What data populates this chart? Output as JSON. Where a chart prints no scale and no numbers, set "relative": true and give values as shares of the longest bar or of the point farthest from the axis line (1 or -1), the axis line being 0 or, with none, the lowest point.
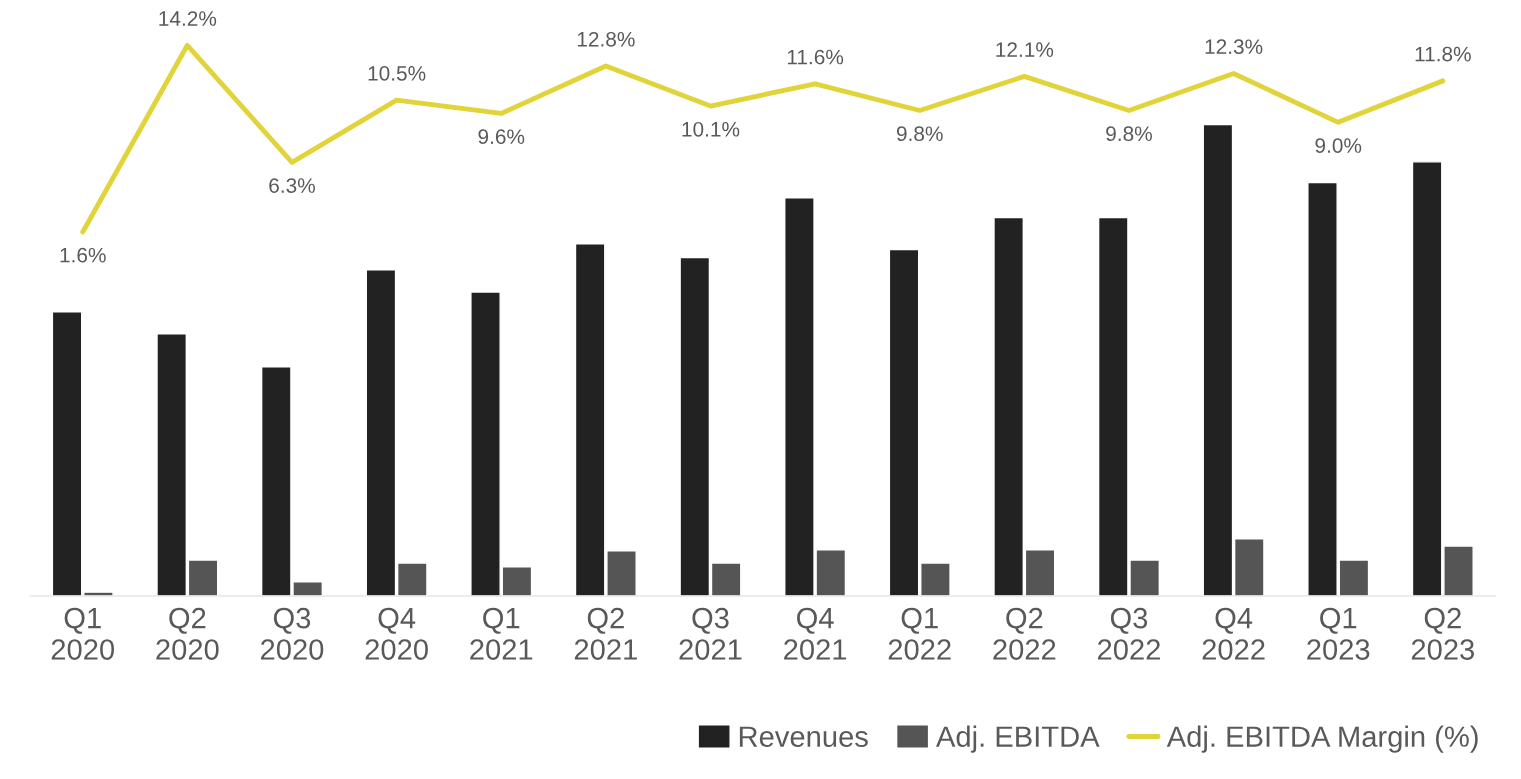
{
  "chart_data": [
    {
      "type": "bar",
      "relative": true,
      "categories": [
        "Q1\n2020",
        "Q2\n2020",
        "Q3\n2020",
        "Q4\n2020",
        "Q1\n2021",
        "Q2\n2021",
        "Q3\n2021",
        "Q4\n2021",
        "Q1\n2022",
        "Q2\n2022",
        "Q3\n2022",
        "Q4\n2022",
        "Q1\n2023",
        "Q2\n2023"
      ],
      "series": [
        {
          "name": "Revenues",
          "color": "#222222",
          "values": [
            0.603,
            0.556,
            0.486,
            0.692,
            0.645,
            0.747,
            0.718,
            0.845,
            0.735,
            0.803,
            0.803,
            1,
            0.877,
            0.921
          ]
        },
        {
          "name": "Adj. EBITDA",
          "color": "#555555",
          "values": [
            0.008,
            0.076,
            0.03,
            0.07,
            0.062,
            0.096,
            0.07,
            0.098,
            0.07,
            0.098,
            0.076,
            0.121,
            0.076,
            0.106
          ]
        }
      ],
      "legend": "bottom right"
    },
    {
      "type": "line",
      "categories": [
        null,
        null,
        null,
        null,
        null,
        null,
        null,
        null,
        null,
        null,
        null,
        null,
        null,
        null
      ],
      "series": [
        {
          "name": "Adj. EBITDA Margin (%)",
          "color": "#e0d43a",
          "values": [
            1.6,
            14.2,
            6.3,
            10.5,
            9.6,
            12.8,
            10.1,
            11.6,
            9.8,
            12.1,
            9.8,
            12.3,
            9.0,
            11.8
          ],
          "value_labels": [
            "1.6%",
            "14.2%",
            "6.3%",
            "10.5%",
            "9.6%",
            "12.8%",
            "10.1%",
            "11.6%",
            "9.8%",
            "12.1%",
            "9.8%",
            "12.3%",
            "9.0%",
            "11.8%"
          ]
        }
      ],
      "legend": "bottom right"
    }
  ]
}
